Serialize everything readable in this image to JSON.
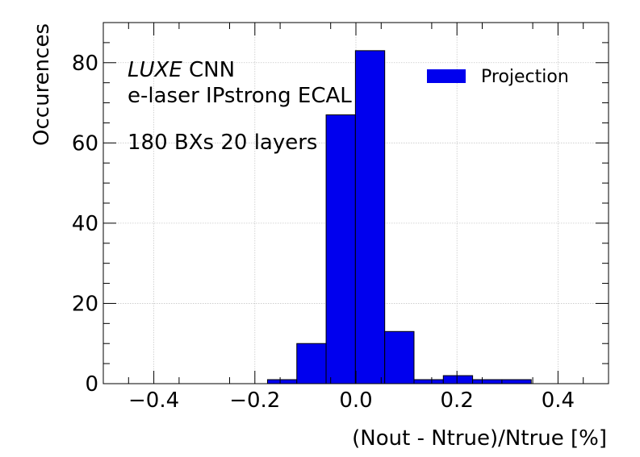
{
  "chart_data": {
    "type": "bar",
    "xlabel": "(Nout - Ntrue)/Ntrue [%]",
    "ylabel": "Occurences",
    "xlim": [
      -0.5,
      0.5
    ],
    "ylim": [
      0,
      90
    ],
    "grid": true,
    "legend_position": "top-right",
    "x_ticks": [
      -0.4,
      -0.2,
      0.0,
      0.2,
      0.4
    ],
    "x_tick_labels": [
      "−0.4",
      "−0.2",
      "0.0",
      "0.2",
      "0.4"
    ],
    "y_ticks": [
      0,
      20,
      40,
      60,
      80
    ],
    "y_tick_labels": [
      "0",
      "20",
      "40",
      "60",
      "80"
    ],
    "annotations": {
      "experiment": "LUXE",
      "model": "CNN",
      "setup": "e-laser IPstrong ECAL",
      "config": "180 BXs 20 layers"
    },
    "series": [
      {
        "name": "Projection",
        "color": "#0000ee",
        "bins": [
          {
            "x0": -0.175,
            "x1": -0.117,
            "value": 1
          },
          {
            "x0": -0.117,
            "x1": -0.059,
            "value": 10
          },
          {
            "x0": -0.059,
            "x1": -0.001,
            "value": 67
          },
          {
            "x0": -0.001,
            "x1": 0.057,
            "value": 83
          },
          {
            "x0": 0.057,
            "x1": 0.115,
            "value": 13
          },
          {
            "x0": 0.115,
            "x1": 0.173,
            "value": 1
          },
          {
            "x0": 0.173,
            "x1": 0.231,
            "value": 2
          },
          {
            "x0": 0.231,
            "x1": 0.289,
            "value": 1
          },
          {
            "x0": 0.289,
            "x1": 0.347,
            "value": 1
          }
        ]
      }
    ]
  }
}
